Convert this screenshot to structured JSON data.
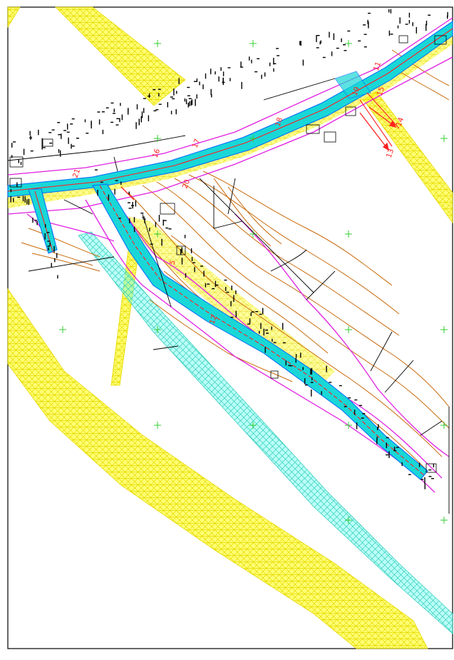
{
  "drawing": {
    "kind": "cad-road-plan",
    "colors": {
      "background": "#ffffff",
      "frame": "#000000",
      "hatch_yellow": "#ffff00",
      "hatch_cyan": "#66ffee",
      "road_fill": "#19d7d7",
      "road_edge": "#0066ff",
      "contour": "#c8690a",
      "boundary": "#e020e0",
      "centerline": "#ff2020",
      "grid_cross": "#33cc33",
      "annotation": "#000000"
    },
    "section_labels": [
      "12",
      "13",
      "14",
      "15",
      "16",
      "17",
      "18",
      "19",
      "20",
      "21",
      "5",
      "11"
    ],
    "grid_marker": "+"
  }
}
